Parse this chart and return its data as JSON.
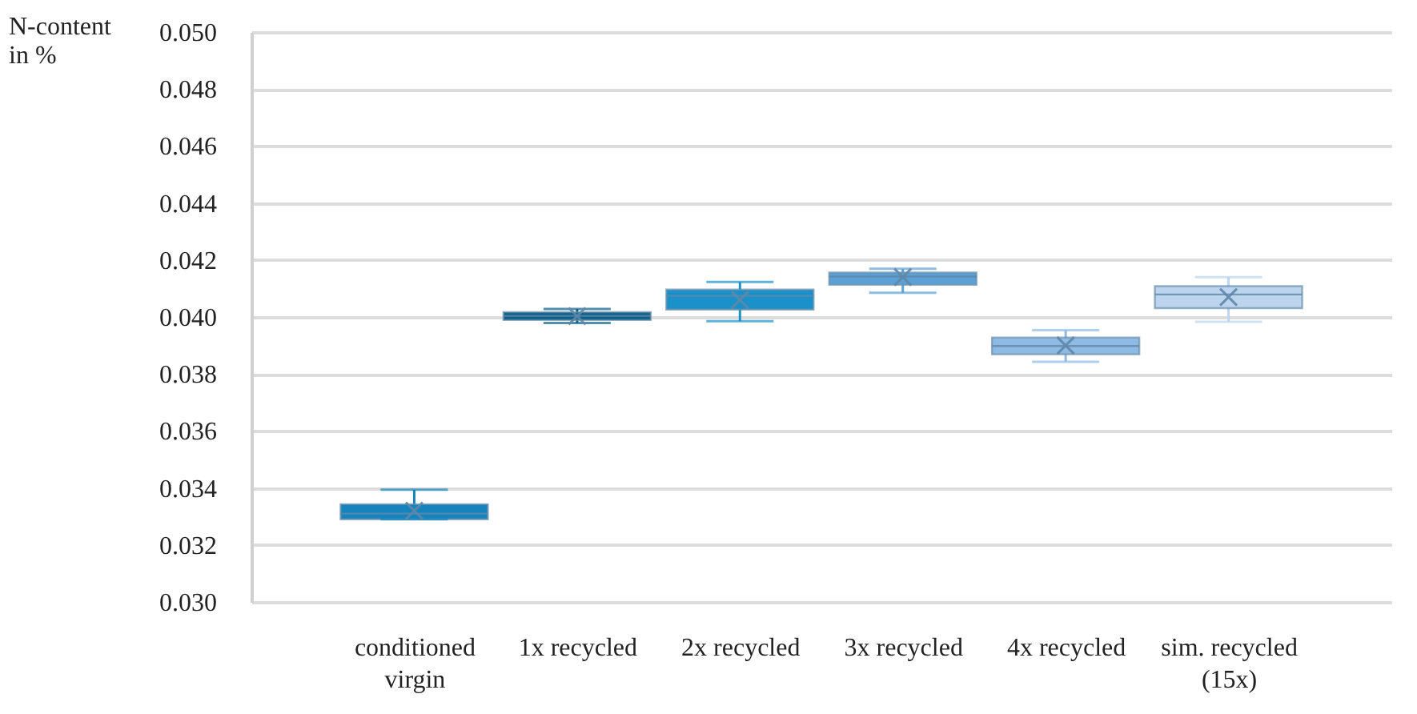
{
  "chart_data": {
    "type": "box",
    "ylabel": "N-content\nin %",
    "categories": [
      "conditioned\nvirgin",
      "1x recycled",
      "2x recycled",
      "3x recycled",
      "4x recycled",
      "sim. recycled\n(15x)"
    ],
    "boxes": [
      {
        "low": 0.0329,
        "q1": 0.0329,
        "median": 0.0331,
        "q3": 0.03343,
        "high": 0.03394,
        "mean": 0.0332
      },
      {
        "low": 0.03979,
        "q1": 0.03989,
        "median": 0.04004,
        "q3": 0.04017,
        "high": 0.04028,
        "mean": 0.04003
      },
      {
        "low": 0.03985,
        "q1": 0.04026,
        "median": 0.04074,
        "q3": 0.04096,
        "high": 0.04123,
        "mean": 0.0406
      },
      {
        "low": 0.04085,
        "q1": 0.04113,
        "median": 0.04142,
        "q3": 0.04156,
        "high": 0.04169,
        "mean": 0.0414
      },
      {
        "low": 0.03843,
        "q1": 0.03869,
        "median": 0.03898,
        "q3": 0.03928,
        "high": 0.03954,
        "mean": 0.039
      },
      {
        "low": 0.03983,
        "q1": 0.04031,
        "median": 0.04079,
        "q3": 0.04108,
        "high": 0.0414,
        "mean": 0.0407
      }
    ],
    "colors": [
      "#1583bd",
      "#0b5f88",
      "#1b91ca",
      "#5ba1d6",
      "#8fbae3",
      "#bdd4ef"
    ],
    "ylim": [
      0.03,
      0.05
    ],
    "yticks": [
      {
        "value": 0.03,
        "label": "0.030"
      },
      {
        "value": 0.032,
        "label": "0.032"
      },
      {
        "value": 0.034,
        "label": "0.034"
      },
      {
        "value": 0.036,
        "label": "0.036"
      },
      {
        "value": 0.038,
        "label": "0.038"
      },
      {
        "value": 0.04,
        "label": "0.040"
      },
      {
        "value": 0.042,
        "label": "0.042"
      },
      {
        "value": 0.044,
        "label": "0.044"
      },
      {
        "value": 0.046,
        "label": "0.046"
      },
      {
        "value": 0.048,
        "label": "0.048"
      },
      {
        "value": 0.05,
        "label": "0.050"
      }
    ],
    "grid": "y",
    "marker": "cross"
  }
}
